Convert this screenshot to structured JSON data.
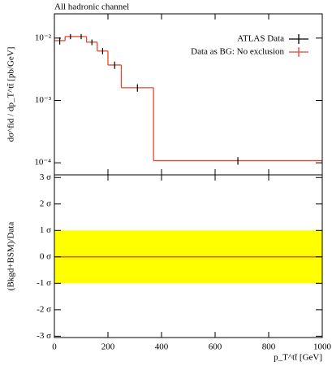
{
  "chart_data": [
    {
      "type": "histogram",
      "title": "All hadronic channel",
      "ylabel": "dσ^fid / dp_T^tt̄ [pb/GeV]",
      "bins": [
        0,
        40,
        80,
        120,
        160,
        200,
        250,
        370,
        1000
      ],
      "series": [
        {
          "name": "ATLAS Data",
          "color": "#000000",
          "values": [
            0.0091,
            0.0106,
            0.0106,
            0.0086,
            0.0062,
            0.0037,
            0.0016,
            0.000108
          ],
          "errors": [
            0.0012,
            0.001,
            0.001,
            0.0009,
            0.0007,
            0.0005,
            0.00022,
            1.5e-05
          ]
        },
        {
          "name": "Data as BG: No exclusion",
          "color": "#e8452c",
          "values": [
            0.0091,
            0.0106,
            0.0106,
            0.0086,
            0.0062,
            0.0037,
            0.0016,
            0.000108
          ]
        }
      ],
      "xlim": [
        0,
        1000
      ],
      "xticks": [
        0,
        200,
        400,
        600,
        800,
        1000
      ],
      "ylog": true,
      "ylim": [
        6.4e-05,
        0.0245
      ],
      "yticks": [
        {
          "value": 0.0001,
          "label": "10⁻⁴"
        },
        {
          "value": 0.001,
          "label": "10⁻³"
        },
        {
          "value": 0.01,
          "label": "10⁻²"
        }
      ],
      "legend": "upper right"
    },
    {
      "type": "ratio",
      "ylabel": "(Bkgd+BSM)/Data",
      "xlabel": "p_T^tt̄ [GeV]",
      "xlim": [
        0,
        1000
      ],
      "xticks": [
        0,
        200,
        400,
        600,
        800,
        1000
      ],
      "ylim": [
        -3.05,
        3.1
      ],
      "yticks": [
        {
          "value": -3,
          "label": "-3 σ"
        },
        {
          "value": -2,
          "label": "-2 σ"
        },
        {
          "value": -1,
          "label": "-1 σ"
        },
        {
          "value": 0,
          "label": "0 σ"
        },
        {
          "value": 1,
          "label": "1 σ"
        },
        {
          "value": 2,
          "label": "2 σ"
        },
        {
          "value": 3,
          "label": "3 σ"
        }
      ],
      "band": {
        "low": -1,
        "high": 1,
        "color": "#ffff00"
      },
      "line": {
        "value": 0,
        "color": "#e8452c"
      }
    }
  ]
}
